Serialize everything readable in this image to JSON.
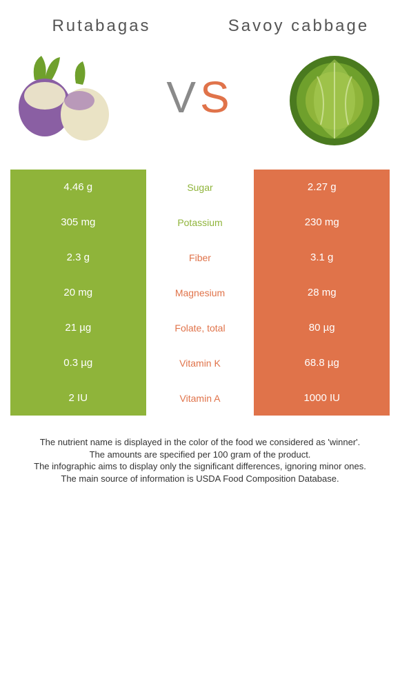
{
  "header": {
    "left_title": "Rutabagas",
    "right_title": "Savoy cabbage",
    "vs_v": "V",
    "vs_s": "S"
  },
  "colors": {
    "left": "#8fb43a",
    "right": "#e0734a",
    "mid_text_left_winner": "#8fb43a",
    "mid_text_right_winner": "#e0734a"
  },
  "rows": [
    {
      "left": "4.46 g",
      "label": "Sugar",
      "right": "2.27 g",
      "winner": "left"
    },
    {
      "left": "305 mg",
      "label": "Potassium",
      "right": "230 mg",
      "winner": "left"
    },
    {
      "left": "2.3 g",
      "label": "Fiber",
      "right": "3.1 g",
      "winner": "right"
    },
    {
      "left": "20 mg",
      "label": "Magnesium",
      "right": "28 mg",
      "winner": "right"
    },
    {
      "left": "21 µg",
      "label": "Folate, total",
      "right": "80 µg",
      "winner": "right"
    },
    {
      "left": "0.3 µg",
      "label": "Vitamin K",
      "right": "68.8 µg",
      "winner": "right"
    },
    {
      "left": "2 IU",
      "label": "Vitamin A",
      "right": "1000 IU",
      "winner": "right"
    }
  ],
  "footer": {
    "line1": "The nutrient name is displayed in the color of the food we considered as 'winner'.",
    "line2": "The amounts are specified per 100 gram of the product.",
    "line3": "The infographic aims to display only the significant differences, ignoring minor ones.",
    "line4": "The main source of information is USDA Food Composition Database."
  }
}
